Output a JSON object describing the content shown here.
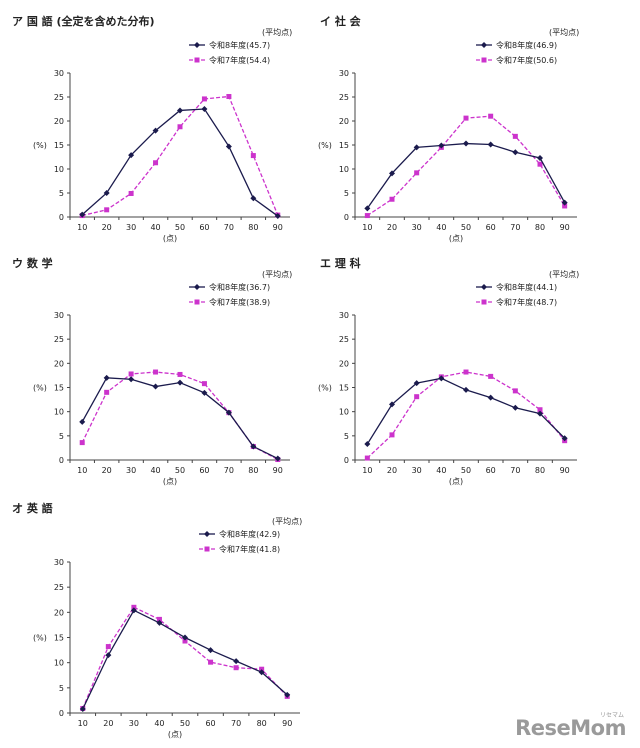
{
  "legend_heading": "(平均点)",
  "series_colors": [
    "#1b1b4d",
    "#cc33cc"
  ],
  "charts": [
    {
      "title": "ア 国 語 (全定を含めた分布)",
      "ylabel": "(%)",
      "xlabel": "(点)",
      "ticks_x": [
        "10",
        "20",
        "30",
        "40",
        "50",
        "60",
        "70",
        "80",
        "90"
      ],
      "ticks_y": [
        "0",
        "5",
        "10",
        "15",
        "20",
        "25",
        "30"
      ],
      "legend": [
        "令和8年度(45.7)",
        "令和7年度(54.4)"
      ]
    },
    {
      "title": "イ 社 会",
      "ylabel": "(%)",
      "xlabel": "(点)",
      "ticks_x": [
        "10",
        "20",
        "30",
        "40",
        "50",
        "60",
        "70",
        "80",
        "90"
      ],
      "ticks_y": [
        "0",
        "5",
        "10",
        "15",
        "20",
        "25",
        "30"
      ],
      "legend": [
        "令和8年度(46.9)",
        "令和7年度(50.6)"
      ]
    },
    {
      "title": "ウ 数 学",
      "ylabel": "(%)",
      "xlabel": "(点)",
      "ticks_x": [
        "10",
        "20",
        "30",
        "40",
        "50",
        "60",
        "70",
        "80",
        "90"
      ],
      "ticks_y": [
        "0",
        "5",
        "10",
        "15",
        "20",
        "25",
        "30"
      ],
      "legend": [
        "令和8年度(36.7)",
        "令和7年度(38.9)"
      ]
    },
    {
      "title": "エ 理 科",
      "ylabel": "(%)",
      "xlabel": "(点)",
      "ticks_x": [
        "10",
        "20",
        "30",
        "40",
        "50",
        "60",
        "70",
        "80",
        "90"
      ],
      "ticks_y": [
        "0",
        "5",
        "10",
        "15",
        "20",
        "25",
        "30"
      ],
      "legend": [
        "令和8年度(44.1)",
        "令和7年度(48.7)"
      ]
    },
    {
      "title": "オ 英 語",
      "ylabel": "(%)",
      "xlabel": "(点)",
      "ticks_x": [
        "10",
        "20",
        "30",
        "40",
        "50",
        "60",
        "70",
        "80",
        "90"
      ],
      "ticks_y": [
        "0",
        "5",
        "10",
        "15",
        "20",
        "25",
        "30"
      ],
      "legend": [
        "令和8年度(42.9)",
        "令和7年度(41.8)"
      ]
    }
  ],
  "chart_data": [
    {
      "type": "line",
      "title": "ア 国 語 (全定を含めた分布)",
      "xlabel": "(点)",
      "ylabel": "(%)",
      "x": [
        10,
        20,
        30,
        40,
        50,
        60,
        70,
        80,
        90
      ],
      "ylim": [
        0,
        30
      ],
      "grid": false,
      "legend_position": "top-right",
      "series": [
        {
          "name": "令和8年度(45.7)",
          "values": [
            0.5,
            5.0,
            12.9,
            18.0,
            22.2,
            22.5,
            14.7,
            3.9,
            0.2
          ]
        },
        {
          "name": "令和7年度(54.4)",
          "values": [
            0.3,
            1.5,
            4.9,
            11.3,
            18.8,
            24.6,
            25.1,
            12.8,
            0.4
          ]
        }
      ]
    },
    {
      "type": "line",
      "title": "イ 社 会",
      "xlabel": "(点)",
      "ylabel": "(%)",
      "x": [
        10,
        20,
        30,
        40,
        50,
        60,
        70,
        80,
        90
      ],
      "ylim": [
        0,
        30
      ],
      "grid": false,
      "legend_position": "top-right",
      "series": [
        {
          "name": "令和8年度(46.9)",
          "values": [
            1.8,
            9.1,
            14.5,
            14.9,
            15.3,
            15.1,
            13.5,
            12.3,
            3.0
          ]
        },
        {
          "name": "令和7年度(50.6)",
          "values": [
            0.3,
            3.7,
            9.2,
            14.5,
            20.6,
            21.0,
            16.8,
            11.0,
            2.3
          ]
        }
      ]
    },
    {
      "type": "line",
      "title": "ウ 数 学",
      "xlabel": "(点)",
      "ylabel": "(%)",
      "x": [
        10,
        20,
        30,
        40,
        50,
        60,
        70,
        80,
        90
      ],
      "ylim": [
        0,
        30
      ],
      "grid": false,
      "legend_position": "top-right",
      "series": [
        {
          "name": "令和8年度(36.7)",
          "values": [
            7.9,
            17.0,
            16.7,
            15.2,
            16.0,
            13.9,
            9.8,
            2.8,
            0.3
          ]
        },
        {
          "name": "令和7年度(38.9)",
          "values": [
            3.6,
            14.0,
            17.8,
            18.2,
            17.7,
            15.8,
            9.8,
            2.8,
            0.1
          ]
        }
      ]
    },
    {
      "type": "line",
      "title": "エ 理 科",
      "xlabel": "(点)",
      "ylabel": "(%)",
      "x": [
        10,
        20,
        30,
        40,
        50,
        60,
        70,
        80,
        90
      ],
      "ylim": [
        0,
        30
      ],
      "grid": false,
      "legend_position": "top-right",
      "series": [
        {
          "name": "令和8年度(44.1)",
          "values": [
            3.3,
            11.5,
            15.9,
            16.9,
            14.5,
            12.9,
            10.8,
            9.6,
            4.5
          ]
        },
        {
          "name": "令和7年度(48.7)",
          "values": [
            0.4,
            5.2,
            13.1,
            17.2,
            18.2,
            17.3,
            14.3,
            10.4,
            4.0
          ]
        }
      ]
    },
    {
      "type": "line",
      "title": "オ 英 語",
      "xlabel": "(点)",
      "ylabel": "(%)",
      "x": [
        10,
        20,
        30,
        40,
        50,
        60,
        70,
        80,
        90
      ],
      "ylim": [
        0,
        30
      ],
      "grid": false,
      "legend_position": "top-right",
      "series": [
        {
          "name": "令和8年度(42.9)",
          "values": [
            0.8,
            11.5,
            20.4,
            17.9,
            15.0,
            12.5,
            10.3,
            8.1,
            3.6
          ]
        },
        {
          "name": "令和7年度(41.8)",
          "values": [
            0.9,
            13.2,
            21.0,
            18.6,
            14.3,
            10.1,
            9.0,
            8.7,
            3.3
          ]
        }
      ]
    }
  ],
  "watermark": {
    "text": "ReseMom",
    "subtext": "リセマム"
  }
}
